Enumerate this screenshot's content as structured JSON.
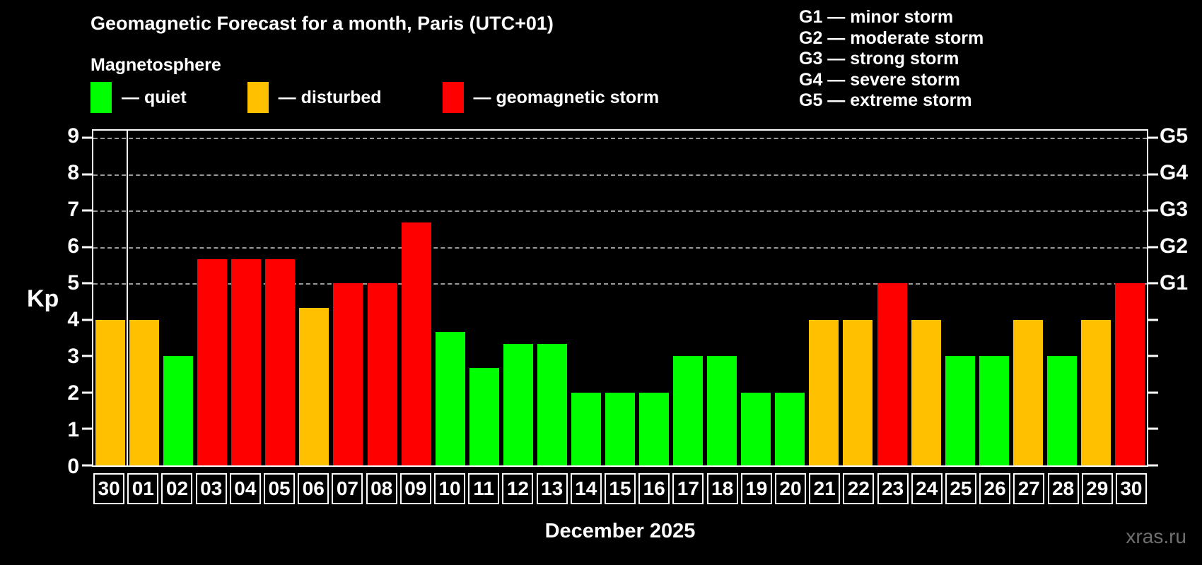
{
  "header": {
    "title": "Geomagnetic Forecast for a month, Paris (UTC+01)",
    "subtitle": "Magnetosphere"
  },
  "legend": {
    "items": [
      {
        "key": "quiet",
        "label": "— quiet",
        "color": "#00ff00"
      },
      {
        "key": "disturbed",
        "label": "— disturbed",
        "color": "#ffc000"
      },
      {
        "key": "storm",
        "label": "— geomagnetic storm",
        "color": "#ff0000"
      }
    ]
  },
  "storm_scale": {
    "lines": [
      "G1 — minor storm",
      "G2 — moderate storm",
      "G3 — strong storm",
      "G4 — severe storm",
      "G5 — extreme storm"
    ]
  },
  "axes": {
    "y_title": "Kp",
    "x_title": "December 2025",
    "y_ticks": [
      0,
      1,
      2,
      3,
      4,
      5,
      6,
      7,
      8,
      9
    ]
  },
  "footer": {
    "watermark": "xras.ru"
  },
  "chart_data": {
    "type": "bar",
    "title": "Geomagnetic Forecast for a month, Paris (UTC+01)",
    "xlabel": "December 2025",
    "ylabel": "Kp",
    "ylim": [
      0,
      9.2
    ],
    "grid": "dashed horizontal at Kp 5-9",
    "grid_levels": [
      5,
      6,
      7,
      8,
      9
    ],
    "legend_position": "top-left",
    "categories": [
      "30",
      "01",
      "02",
      "03",
      "04",
      "05",
      "06",
      "07",
      "08",
      "09",
      "10",
      "11",
      "12",
      "13",
      "14",
      "15",
      "16",
      "17",
      "18",
      "19",
      "20",
      "21",
      "22",
      "23",
      "24",
      "25",
      "26",
      "27",
      "28",
      "29",
      "30"
    ],
    "values": [
      4,
      4,
      3,
      5.67,
      5.67,
      5.67,
      4.33,
      5,
      5,
      6.67,
      3.67,
      2.67,
      3.33,
      3.33,
      2,
      2,
      2,
      3,
      3,
      2,
      2,
      4,
      4,
      5,
      4,
      3,
      3,
      4,
      3,
      4,
      5
    ],
    "statuses": [
      "disturbed",
      "disturbed",
      "quiet",
      "storm",
      "storm",
      "storm",
      "disturbed",
      "storm",
      "storm",
      "storm",
      "quiet",
      "quiet",
      "quiet",
      "quiet",
      "quiet",
      "quiet",
      "quiet",
      "quiet",
      "quiet",
      "quiet",
      "quiet",
      "disturbed",
      "disturbed",
      "storm",
      "disturbed",
      "quiet",
      "quiet",
      "disturbed",
      "quiet",
      "disturbed",
      "storm"
    ],
    "colors": {
      "quiet": "#00ff00",
      "disturbed": "#ffc000",
      "storm": "#ff0000"
    },
    "right_axis_labels": [
      {
        "text": "G1",
        "kp": 5
      },
      {
        "text": "G2",
        "kp": 6
      },
      {
        "text": "G3",
        "kp": 7
      },
      {
        "text": "G4",
        "kp": 8
      },
      {
        "text": "G5",
        "kp": 9
      }
    ],
    "separator_after_index": 0
  }
}
